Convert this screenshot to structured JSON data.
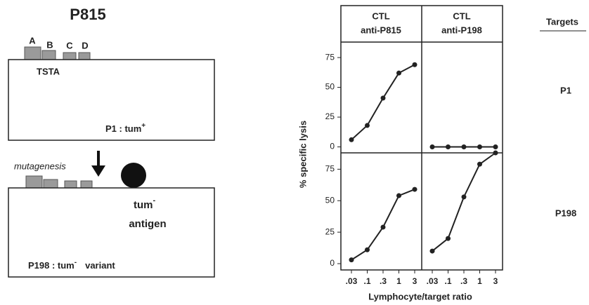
{
  "diagram": {
    "title": "P815",
    "antigens": [
      "A",
      "B",
      "C",
      "D"
    ],
    "tsta": "TSTA",
    "p1_label": "P1 : tum",
    "p1_sup": "+",
    "mutagenesis": "mutagenesis",
    "tum_antigen": "tum",
    "tum_sup": "-",
    "antigen": "antigen",
    "p198_label": "P198 : tum",
    "p198_sup": "-",
    "p198_variant": "variant"
  },
  "figure": {
    "y_label": "% specific lysis",
    "x_label": "Lymphocyte/target ratio",
    "targets": "Targets",
    "rows": [
      "P1",
      "P198"
    ],
    "columns": [
      [
        "CTL",
        "anti-P815"
      ],
      [
        "CTL",
        "anti-P198"
      ]
    ]
  },
  "chart_data": [
    {
      "type": "line",
      "values": [
        6,
        18,
        41,
        62,
        69
      ],
      "ylim": [
        -5,
        88
      ],
      "yticks": [
        0,
        25,
        50,
        75
      ],
      "color": "#222"
    },
    {
      "type": "line",
      "values": [
        0,
        0,
        0,
        0,
        0
      ],
      "ylim": [
        -5,
        88
      ],
      "color": "#222"
    },
    {
      "type": "line",
      "categories": [
        ".03",
        ".1",
        ".3",
        "1",
        "3"
      ],
      "values": [
        3,
        11,
        29,
        54,
        59
      ],
      "ylim": [
        -5,
        88
      ],
      "yticks": [
        0,
        25,
        50,
        75
      ],
      "color": "#222"
    },
    {
      "type": "line",
      "categories": [
        ".03",
        ".1",
        ".3",
        "1",
        "3"
      ],
      "values": [
        10,
        20,
        53,
        79,
        88
      ],
      "ylim": [
        -5,
        88
      ],
      "color": "#222"
    }
  ]
}
